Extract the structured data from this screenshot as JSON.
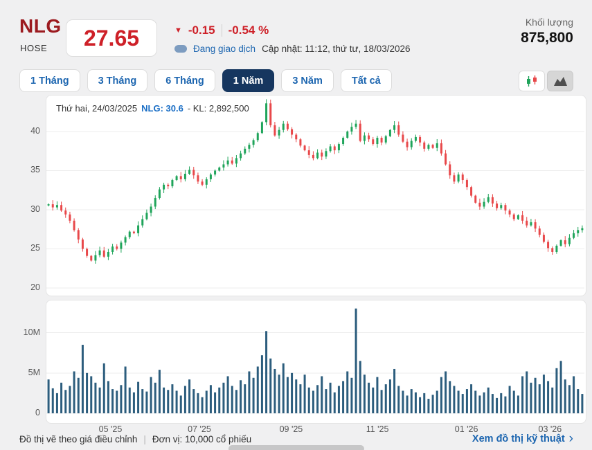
{
  "header": {
    "ticker": "NLG",
    "exchange": "HOSE",
    "price": "27.65",
    "change_icon": "▼",
    "change": "-0.15",
    "change_pct": "-0.54 %",
    "status": "Đang giao dịch",
    "updated": "Cập nhật: 11:12, thứ tư, 18/03/2026",
    "volume_label": "Khối lượng",
    "volume_value": "875,800"
  },
  "toolbar": {
    "ranges": [
      "1 Tháng",
      "3 Tháng",
      "6 Tháng",
      "1 Năm",
      "3 Năm",
      "Tất cả"
    ],
    "active_range": "1 Năm",
    "chart_type_icons": [
      "candlestick-icon",
      "area-chart-icon"
    ],
    "selected_chart_type": "area-chart-icon"
  },
  "tooltip": {
    "date": "Thứ hai, 24/03/2025",
    "price": "NLG: 30.6",
    "volume": "- KL: 2,892,500"
  },
  "footer": {
    "note_adjusted": "Đồ thị vẽ theo giá điều chỉnh",
    "separator": "|",
    "note_unit": "Đơn vị: 10,000 cổ phiếu",
    "link": "Xem đồ thị kỹ thuật",
    "link_chevron": "›"
  },
  "colors": {
    "accent_red": "#ce2028",
    "ticker_red": "#9c1b20",
    "link_blue": "#1d66b0",
    "active_tab_bg": "#16365f",
    "up_green": "#1fa45a",
    "down_red": "#e8484a",
    "volume_bar": "#2c5d7d",
    "grid": "#ececec"
  },
  "chart_data": {
    "type": "candlestick_with_volume",
    "title": "NLG — 1 Năm (24/03/2025 – 18/03/2026)",
    "price_axis": {
      "ticks": [
        40,
        35,
        30,
        25,
        20
      ],
      "range": [
        19.2,
        44.6
      ]
    },
    "volume_axis": {
      "ticks": [
        {
          "label": "10M",
          "value": 10
        },
        {
          "label": "5M",
          "value": 5
        },
        {
          "label": "0",
          "value": 0
        }
      ],
      "range": [
        0,
        14
      ],
      "unit": "million shares"
    },
    "x_ticks": [
      {
        "label": "05 '25",
        "pos": 0.12
      },
      {
        "label": "07 '25",
        "pos": 0.285
      },
      {
        "label": "09 '25",
        "pos": 0.455
      },
      {
        "label": "11 '25",
        "pos": 0.615
      },
      {
        "label": "01 '26",
        "pos": 0.78
      },
      {
        "label": "03 '26",
        "pos": 0.935
      }
    ],
    "closes": [
      30.7,
      30.3,
      30.6,
      29.9,
      29.4,
      28.6,
      27.4,
      26.2,
      25.0,
      24.1,
      23.5,
      24.2,
      24.8,
      24.0,
      24.6,
      25.3,
      25.0,
      25.8,
      26.5,
      27.2,
      27.0,
      28.0,
      28.8,
      29.6,
      30.4,
      31.5,
      32.6,
      33.2,
      33.0,
      33.8,
      34.3,
      33.9,
      34.6,
      35.1,
      34.4,
      33.6,
      33.2,
      33.9,
      34.5,
      35.0,
      35.4,
      35.8,
      36.3,
      35.9,
      36.6,
      37.2,
      37.8,
      38.3,
      38.9,
      39.8,
      41.2,
      43.6,
      40.8,
      39.5,
      40.2,
      41.0,
      40.3,
      39.6,
      39.0,
      38.2,
      37.6,
      37.0,
      36.6,
      37.3,
      36.8,
      37.5,
      38.1,
      37.6,
      38.4,
      39.2,
      40.0,
      40.6,
      41.0,
      38.8,
      39.5,
      39.0,
      38.4,
      39.2,
      38.6,
      39.4,
      40.2,
      40.8,
      39.6,
      38.7,
      38.0,
      38.8,
      39.3,
      38.6,
      37.8,
      38.3,
      37.9,
      38.5,
      37.2,
      35.8,
      34.4,
      33.6,
      34.5,
      33.8,
      32.9,
      31.8,
      30.9,
      30.4,
      31.0,
      31.6,
      30.8,
      30.2,
      30.6,
      29.9,
      29.4,
      28.8,
      29.3,
      28.6,
      28.0,
      28.4,
      27.6,
      26.8,
      25.9,
      25.1,
      24.6,
      25.4,
      26.1,
      25.6,
      26.4,
      27.0,
      27.4,
      27.65
    ],
    "volumes_m": [
      4.2,
      3.1,
      2.5,
      3.8,
      2.9,
      3.4,
      5.2,
      4.4,
      8.5,
      5.0,
      4.6,
      3.8,
      3.2,
      6.2,
      4.0,
      3.0,
      2.8,
      3.5,
      5.8,
      3.2,
      2.6,
      3.9,
      3.0,
      2.7,
      4.5,
      3.8,
      5.4,
      3.2,
      2.9,
      3.6,
      2.8,
      2.2,
      3.4,
      4.2,
      3.0,
      2.5,
      2.0,
      2.8,
      3.5,
      2.6,
      3.2,
      3.8,
      4.6,
      3.4,
      2.9,
      4.1,
      3.6,
      5.2,
      4.4,
      5.8,
      7.2,
      10.2,
      6.8,
      5.5,
      4.8,
      6.2,
      4.5,
      5.0,
      4.2,
      3.6,
      4.8,
      3.2,
      2.8,
      3.5,
      4.6,
      3.0,
      3.8,
      2.6,
      3.4,
      4.0,
      5.2,
      4.4,
      13.0,
      6.5,
      4.8,
      3.8,
      3.2,
      4.5,
      2.9,
      3.6,
      4.2,
      5.5,
      3.4,
      2.8,
      2.2,
      3.0,
      2.6,
      2.0,
      2.5,
      1.8,
      2.3,
      2.8,
      4.5,
      5.2,
      4.0,
      3.4,
      2.8,
      2.4,
      3.0,
      3.6,
      2.8,
      2.2,
      2.6,
      3.2,
      2.4,
      1.9,
      2.5,
      2.1,
      3.4,
      2.8,
      2.2,
      4.6,
      5.2,
      3.8,
      4.4,
      3.6,
      4.8,
      4.0,
      3.2,
      5.6,
      6.5,
      4.2,
      3.5,
      4.6,
      3.0,
      2.4
    ],
    "up_color": "#1fa45a",
    "down_color": "#e8484a",
    "volume_color": "#2c5d7d"
  }
}
